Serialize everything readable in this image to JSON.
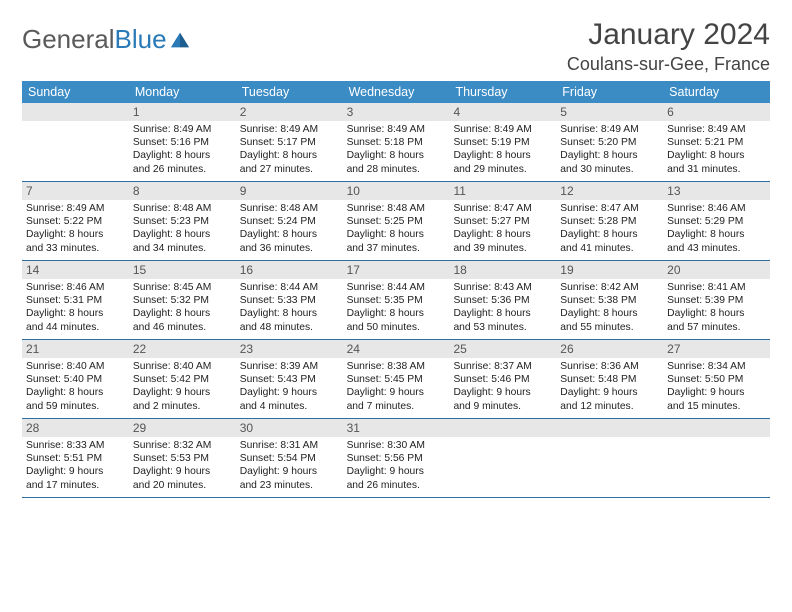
{
  "logo": {
    "text1": "General",
    "text2": "Blue"
  },
  "title": "January 2024",
  "location": "Coulans-sur-Gee, France",
  "colors": {
    "header_bg": "#3b8bc4",
    "header_text": "#ffffff",
    "daynum_bg": "#e7e7e7",
    "border": "#2f6fa0",
    "logo_gray": "#5a5a5a",
    "logo_blue": "#2a7ab8",
    "body_bg": "#ffffff"
  },
  "fonts": {
    "title_size": 30,
    "location_size": 18,
    "dow_size": 12.5,
    "daynum_size": 12,
    "body_size": 10.3
  },
  "dow": [
    "Sunday",
    "Monday",
    "Tuesday",
    "Wednesday",
    "Thursday",
    "Friday",
    "Saturday"
  ],
  "weeks": [
    [
      {
        "n": "",
        "lines": []
      },
      {
        "n": "1",
        "lines": [
          "Sunrise: 8:49 AM",
          "Sunset: 5:16 PM",
          "Daylight: 8 hours",
          "and 26 minutes."
        ]
      },
      {
        "n": "2",
        "lines": [
          "Sunrise: 8:49 AM",
          "Sunset: 5:17 PM",
          "Daylight: 8 hours",
          "and 27 minutes."
        ]
      },
      {
        "n": "3",
        "lines": [
          "Sunrise: 8:49 AM",
          "Sunset: 5:18 PM",
          "Daylight: 8 hours",
          "and 28 minutes."
        ]
      },
      {
        "n": "4",
        "lines": [
          "Sunrise: 8:49 AM",
          "Sunset: 5:19 PM",
          "Daylight: 8 hours",
          "and 29 minutes."
        ]
      },
      {
        "n": "5",
        "lines": [
          "Sunrise: 8:49 AM",
          "Sunset: 5:20 PM",
          "Daylight: 8 hours",
          "and 30 minutes."
        ]
      },
      {
        "n": "6",
        "lines": [
          "Sunrise: 8:49 AM",
          "Sunset: 5:21 PM",
          "Daylight: 8 hours",
          "and 31 minutes."
        ]
      }
    ],
    [
      {
        "n": "7",
        "lines": [
          "Sunrise: 8:49 AM",
          "Sunset: 5:22 PM",
          "Daylight: 8 hours",
          "and 33 minutes."
        ]
      },
      {
        "n": "8",
        "lines": [
          "Sunrise: 8:48 AM",
          "Sunset: 5:23 PM",
          "Daylight: 8 hours",
          "and 34 minutes."
        ]
      },
      {
        "n": "9",
        "lines": [
          "Sunrise: 8:48 AM",
          "Sunset: 5:24 PM",
          "Daylight: 8 hours",
          "and 36 minutes."
        ]
      },
      {
        "n": "10",
        "lines": [
          "Sunrise: 8:48 AM",
          "Sunset: 5:25 PM",
          "Daylight: 8 hours",
          "and 37 minutes."
        ]
      },
      {
        "n": "11",
        "lines": [
          "Sunrise: 8:47 AM",
          "Sunset: 5:27 PM",
          "Daylight: 8 hours",
          "and 39 minutes."
        ]
      },
      {
        "n": "12",
        "lines": [
          "Sunrise: 8:47 AM",
          "Sunset: 5:28 PM",
          "Daylight: 8 hours",
          "and 41 minutes."
        ]
      },
      {
        "n": "13",
        "lines": [
          "Sunrise: 8:46 AM",
          "Sunset: 5:29 PM",
          "Daylight: 8 hours",
          "and 43 minutes."
        ]
      }
    ],
    [
      {
        "n": "14",
        "lines": [
          "Sunrise: 8:46 AM",
          "Sunset: 5:31 PM",
          "Daylight: 8 hours",
          "and 44 minutes."
        ]
      },
      {
        "n": "15",
        "lines": [
          "Sunrise: 8:45 AM",
          "Sunset: 5:32 PM",
          "Daylight: 8 hours",
          "and 46 minutes."
        ]
      },
      {
        "n": "16",
        "lines": [
          "Sunrise: 8:44 AM",
          "Sunset: 5:33 PM",
          "Daylight: 8 hours",
          "and 48 minutes."
        ]
      },
      {
        "n": "17",
        "lines": [
          "Sunrise: 8:44 AM",
          "Sunset: 5:35 PM",
          "Daylight: 8 hours",
          "and 50 minutes."
        ]
      },
      {
        "n": "18",
        "lines": [
          "Sunrise: 8:43 AM",
          "Sunset: 5:36 PM",
          "Daylight: 8 hours",
          "and 53 minutes."
        ]
      },
      {
        "n": "19",
        "lines": [
          "Sunrise: 8:42 AM",
          "Sunset: 5:38 PM",
          "Daylight: 8 hours",
          "and 55 minutes."
        ]
      },
      {
        "n": "20",
        "lines": [
          "Sunrise: 8:41 AM",
          "Sunset: 5:39 PM",
          "Daylight: 8 hours",
          "and 57 minutes."
        ]
      }
    ],
    [
      {
        "n": "21",
        "lines": [
          "Sunrise: 8:40 AM",
          "Sunset: 5:40 PM",
          "Daylight: 8 hours",
          "and 59 minutes."
        ]
      },
      {
        "n": "22",
        "lines": [
          "Sunrise: 8:40 AM",
          "Sunset: 5:42 PM",
          "Daylight: 9 hours",
          "and 2 minutes."
        ]
      },
      {
        "n": "23",
        "lines": [
          "Sunrise: 8:39 AM",
          "Sunset: 5:43 PM",
          "Daylight: 9 hours",
          "and 4 minutes."
        ]
      },
      {
        "n": "24",
        "lines": [
          "Sunrise: 8:38 AM",
          "Sunset: 5:45 PM",
          "Daylight: 9 hours",
          "and 7 minutes."
        ]
      },
      {
        "n": "25",
        "lines": [
          "Sunrise: 8:37 AM",
          "Sunset: 5:46 PM",
          "Daylight: 9 hours",
          "and 9 minutes."
        ]
      },
      {
        "n": "26",
        "lines": [
          "Sunrise: 8:36 AM",
          "Sunset: 5:48 PM",
          "Daylight: 9 hours",
          "and 12 minutes."
        ]
      },
      {
        "n": "27",
        "lines": [
          "Sunrise: 8:34 AM",
          "Sunset: 5:50 PM",
          "Daylight: 9 hours",
          "and 15 minutes."
        ]
      }
    ],
    [
      {
        "n": "28",
        "lines": [
          "Sunrise: 8:33 AM",
          "Sunset: 5:51 PM",
          "Daylight: 9 hours",
          "and 17 minutes."
        ]
      },
      {
        "n": "29",
        "lines": [
          "Sunrise: 8:32 AM",
          "Sunset: 5:53 PM",
          "Daylight: 9 hours",
          "and 20 minutes."
        ]
      },
      {
        "n": "30",
        "lines": [
          "Sunrise: 8:31 AM",
          "Sunset: 5:54 PM",
          "Daylight: 9 hours",
          "and 23 minutes."
        ]
      },
      {
        "n": "31",
        "lines": [
          "Sunrise: 8:30 AM",
          "Sunset: 5:56 PM",
          "Daylight: 9 hours",
          "and 26 minutes."
        ]
      },
      {
        "n": "",
        "lines": []
      },
      {
        "n": "",
        "lines": []
      },
      {
        "n": "",
        "lines": []
      }
    ]
  ]
}
